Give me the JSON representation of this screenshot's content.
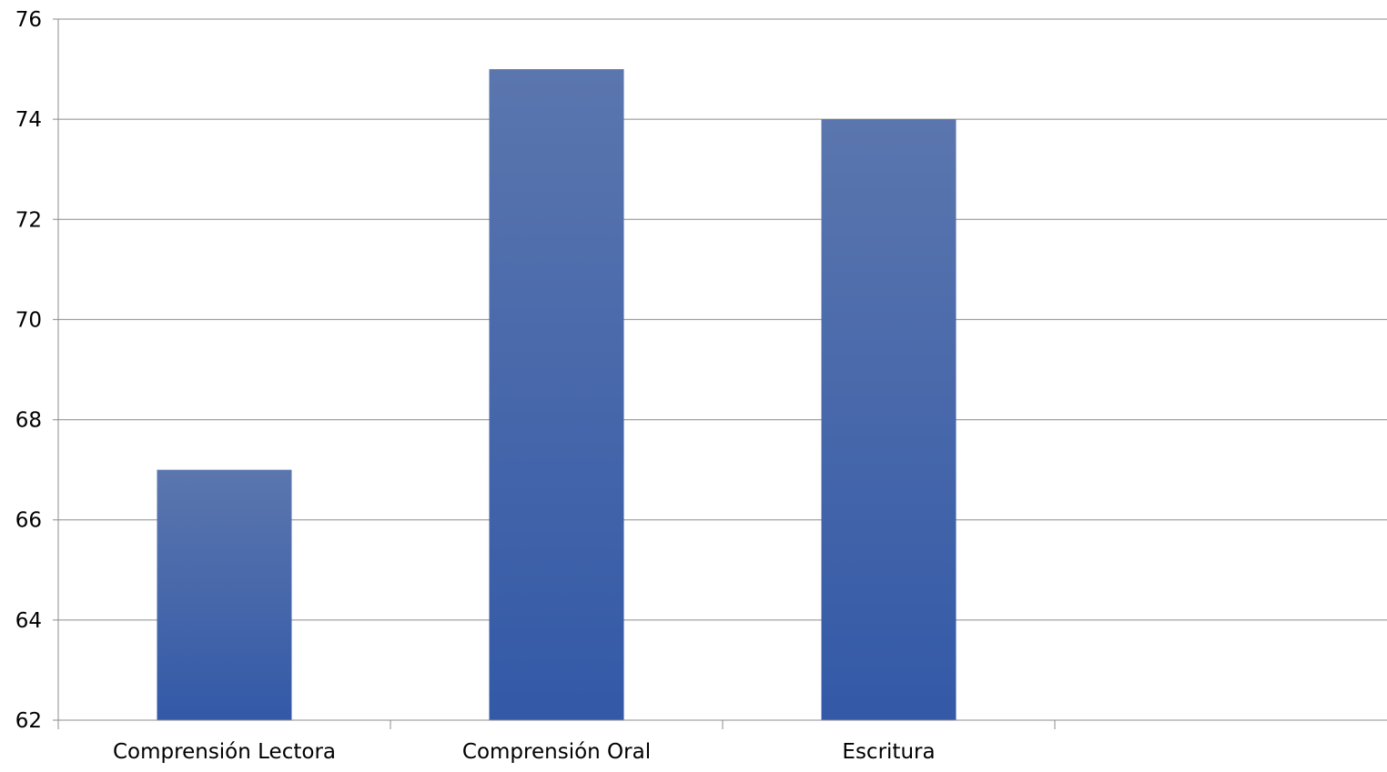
{
  "chart_data": {
    "type": "bar",
    "title": "",
    "xlabel": "",
    "ylabel": "",
    "categories": [
      "Comprensión Lectora",
      "Comprensión Oral",
      "Escritura",
      ""
    ],
    "values": [
      67,
      75,
      74,
      null
    ],
    "ylim": [
      62,
      76
    ],
    "yticks": [
      62,
      64,
      66,
      68,
      70,
      72,
      74,
      76
    ],
    "grid": true,
    "legend": "none",
    "colors": {
      "bar_top": "#5B76AE",
      "bar_bottom": "#3359A7",
      "grid": "#8C8C8C",
      "axis": "#8C8C8C"
    }
  }
}
